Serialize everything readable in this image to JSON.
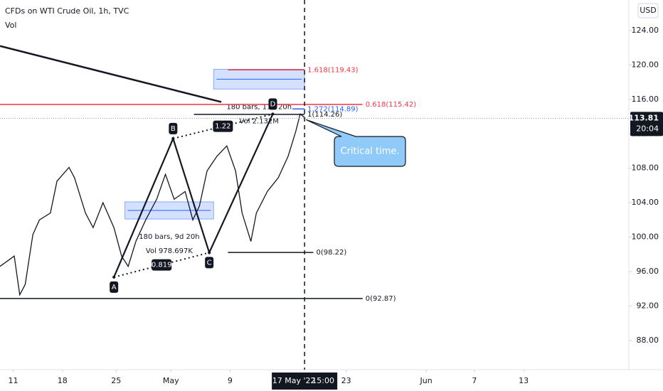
{
  "chart_data": {
    "type": "line",
    "title": "CFDs on WTI Crude Oil, 1h, TVC",
    "subtitle": "Vol",
    "currency": "USD",
    "x": [
      -1.2,
      0.1,
      0.6,
      1.1,
      1.8,
      2.4,
      3.4,
      4.0,
      5.1,
      5.6,
      6.6,
      7.3,
      8.2,
      9.2,
      9.9,
      10.5,
      11.2,
      12.1,
      13.1,
      13.9,
      14.7,
      15.7,
      16.4,
      17.0,
      17.7,
      18.6,
      19.5,
      20.3,
      20.9,
      21.7,
      22.2,
      23.2,
      24.2,
      25.1,
      25.8,
      26.2,
      26.6
    ],
    "series": [
      {
        "name": "CFDs on WTI Crude Oil",
        "color": "#131722",
        "values": [
          96.6,
          97.8,
          93.3,
          94.5,
          100.3,
          102.0,
          102.8,
          106.5,
          108.1,
          106.9,
          102.8,
          101.1,
          104.0,
          101.1,
          97.8,
          96.6,
          99.5,
          102.0,
          104.4,
          107.3,
          104.4,
          105.3,
          102.0,
          103.6,
          107.7,
          109.4,
          110.6,
          107.7,
          102.8,
          99.5,
          102.8,
          105.3,
          106.9,
          109.4,
          112.3,
          114.3,
          113.9
        ]
      }
    ],
    "xlim": [
      -1.2,
      56.2
    ],
    "ylim": [
      84.6,
      127.55
    ],
    "xticks": [
      {
        "value": 0,
        "label": "11"
      },
      {
        "value": 4.5,
        "label": "18"
      },
      {
        "value": 9.4,
        "label": "25"
      },
      {
        "value": 14.4,
        "label": "May"
      },
      {
        "value": 19.8,
        "label": "9"
      },
      {
        "value": 30.4,
        "label": "23"
      },
      {
        "value": 37.7,
        "label": "Jun"
      },
      {
        "value": 42.1,
        "label": "7"
      },
      {
        "value": 46.6,
        "label": "13"
      }
    ],
    "yticks": [
      {
        "value": 88,
        "label": "88.00"
      },
      {
        "value": 92,
        "label": "92.00"
      },
      {
        "value": 96,
        "label": "96.00"
      },
      {
        "value": 100,
        "label": "100.00"
      },
      {
        "value": 104,
        "label": "104.00"
      },
      {
        "value": 108,
        "label": "108.00"
      },
      {
        "value": 112,
        "label": "112.00"
      },
      {
        "value": 116,
        "label": "116.00"
      },
      {
        "value": 120,
        "label": "120.00"
      },
      {
        "value": 124,
        "label": "124.00"
      }
    ],
    "crosshair": {
      "value": 26.6,
      "label": "17 May '22",
      "time": "15:00"
    },
    "last_price": {
      "value": 113.81,
      "label": "113.81",
      "countdown": "20:04"
    },
    "levels": [
      {
        "label": "1.618(119.43)",
        "value": 119.43,
        "x": [
          19.6,
          26.6
        ],
        "color": "#f23645"
      },
      {
        "label": "0.618(115.42)",
        "value": 115.42,
        "x": [
          -1.2,
          31.9
        ],
        "color": "#f23645"
      },
      {
        "label": "1.272(114.89)",
        "value": 114.89,
        "x": [
          25.5,
          26.6
        ],
        "color": "#2962ff"
      },
      {
        "label": "1(114.26)",
        "value": 114.26,
        "x": [
          16.5,
          26.6
        ],
        "color": "#131722"
      },
      {
        "label": "0(98.22)",
        "value": 98.22,
        "x": [
          19.6,
          27.4
        ],
        "color": "#131722"
      },
      {
        "label": "0(92.87)",
        "value": 92.87,
        "x": [
          -1.2,
          31.9
        ],
        "color": "#131722"
      }
    ],
    "trendline": {
      "x": [
        -1.2,
        19.0
      ],
      "y": [
        122.2,
        115.7
      ]
    },
    "pattern": [
      {
        "label": "A",
        "x": 9.2,
        "y": 95.35
      },
      {
        "label": "B",
        "x": 14.6,
        "y": 111.45
      },
      {
        "label": "C",
        "x": 17.9,
        "y": 98.2
      },
      {
        "label": "D",
        "x": 23.7,
        "y": 114.3
      }
    ],
    "ratios": [
      {
        "label": "0.819",
        "from": 0,
        "to": 2
      },
      {
        "label": "1.22",
        "from": 1,
        "to": 3
      }
    ],
    "ranges": [
      {
        "x": [
          10.2,
          18.3
        ],
        "y": [
          102.1,
          104.1
        ],
        "label": "180 bars, 9d 20h",
        "volume_label": "Vol 978.697K"
      },
      {
        "x": [
          18.3,
          26.6
        ],
        "y": [
          117.2,
          119.5
        ],
        "label": "180 bars, 11d 20h",
        "volume_label": "Vol 2.132M"
      }
    ],
    "callout": "Critical time."
  }
}
